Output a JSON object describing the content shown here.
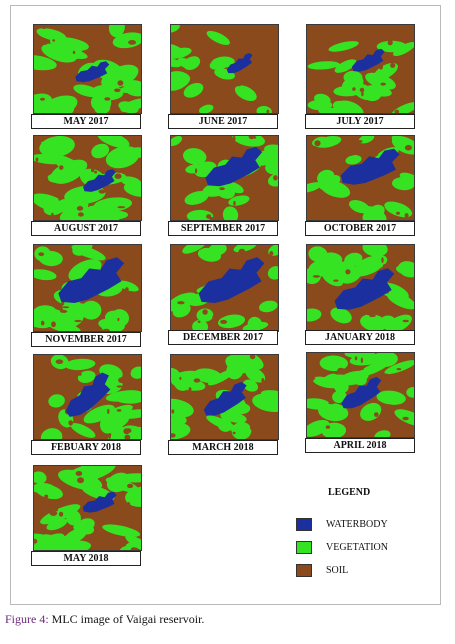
{
  "figure": {
    "caption_prefix": "Figure 4:",
    "caption_text": " MLC image of Vaigai reservoir.",
    "panels": [
      {
        "label": "MAY 2017"
      },
      {
        "label": "JUNE 2017"
      },
      {
        "label": "JULY 2017"
      },
      {
        "label": "AUGUST 2017"
      },
      {
        "label": "SEPTEMBER 2017"
      },
      {
        "label": "OCTOBER 2017"
      },
      {
        "label": "NOVEMBER 2017"
      },
      {
        "label": "DECEMBER 2017"
      },
      {
        "label": "JANUARY 2018"
      },
      {
        "label": "FEBUARY 2018"
      },
      {
        "label": "MARCH 2018"
      },
      {
        "label": "APRIL 2018"
      },
      {
        "label": "MAY 2018"
      }
    ],
    "legend": {
      "title": "LEGEND",
      "items": [
        {
          "label": "WATERBODY",
          "color": "#1c2f9e"
        },
        {
          "label": "VEGETATION",
          "color": "#35e322"
        },
        {
          "label": "SOIL",
          "color": "#8b4a1c"
        }
      ]
    },
    "colors": {
      "soil": "#8b4a1c",
      "vegetation": "#35e322",
      "water": "#1c2f9e",
      "caption_accent": "#6b2b7a"
    }
  }
}
